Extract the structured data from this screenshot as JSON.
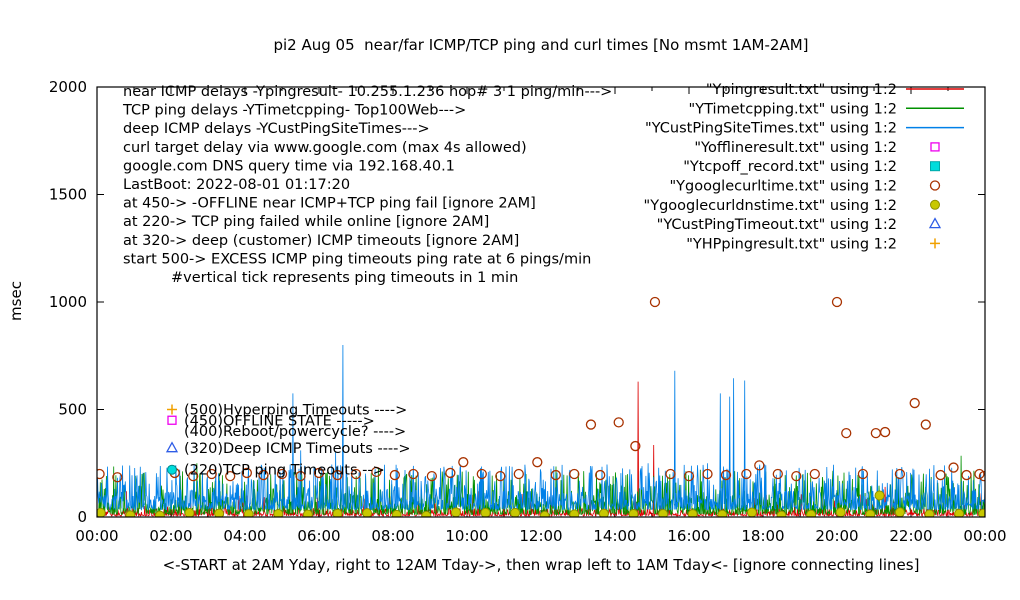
{
  "figure": {
    "title": "pi2 Aug 05  near/far ICMP/TCP ping and curl times [No msmt 1AM-2AM]",
    "xlabel": "<-START at 2AM Yday, right to 12AM Tday->, then wrap left to 1AM Tday<- [ignore connecting lines]",
    "ylabel": "msec"
  },
  "chart_data": {
    "type": "line",
    "title": "pi2 Aug 05  near/far ICMP/TCP ping and curl times [No msmt 1AM-2AM]",
    "xlabel": "<-START at 2AM Yday, right to 12AM Tday->, then wrap left to 1AM Tday<- [ignore connecting lines]",
    "ylabel": "msec",
    "ylim": [
      0,
      2000
    ],
    "x_hours": [
      0,
      24
    ],
    "grid": false,
    "legend_position": "top-right",
    "x_tick_hours": [
      0,
      2,
      4,
      6,
      8,
      10,
      12,
      14,
      16,
      18,
      20,
      22,
      24
    ],
    "x_tick_labels": [
      "00:00",
      "02:00",
      "04:00",
      "06:00",
      "08:00",
      "10:00",
      "12:00",
      "14:00",
      "16:00",
      "18:00",
      "20:00",
      "22:00",
      "00:00"
    ],
    "y_ticks": [
      0,
      500,
      1000,
      1500,
      2000
    ],
    "series": [
      {
        "name": "\"Ypingresult.txt\" using 1:2",
        "file": "Ypingresult.txt",
        "type": "line",
        "color": "#dd0000",
        "seed": 11,
        "noise": {
          "min": 5,
          "max": 42,
          "spike_prob": 0.05,
          "spike_max": 110
        },
        "spikes": [
          [
            0.8,
            120
          ],
          [
            4.05,
            100
          ],
          [
            10.3,
            120
          ],
          [
            14.62,
            630
          ],
          [
            15.05,
            335
          ],
          [
            18.3,
            90
          ],
          [
            21.3,
            140
          ],
          [
            23.9,
            110
          ]
        ]
      },
      {
        "name": "\"YTimetcpping.txt\" using 1:2",
        "file": "YTimetcpping.txt",
        "type": "line",
        "color": "#009100",
        "seed": 22,
        "noise": {
          "min": 12,
          "max": 95,
          "spike_prob": 0.18,
          "spike_max": 215
        },
        "spikes": [
          [
            0.45,
            235
          ],
          [
            2.7,
            250
          ],
          [
            3.3,
            205
          ],
          [
            4.6,
            195
          ],
          [
            5.2,
            210
          ],
          [
            6.1,
            195
          ],
          [
            7.6,
            230
          ],
          [
            8.5,
            195
          ],
          [
            9.4,
            205
          ],
          [
            10.8,
            195
          ],
          [
            11.6,
            200
          ],
          [
            12.4,
            235
          ],
          [
            13.5,
            205
          ],
          [
            14.3,
            195
          ],
          [
            16.3,
            220
          ],
          [
            18.6,
            195
          ],
          [
            19.2,
            205
          ],
          [
            20.6,
            195
          ],
          [
            21.6,
            195
          ],
          [
            22.5,
            190
          ],
          [
            23.35,
            285
          ],
          [
            23.7,
            215
          ]
        ]
      },
      {
        "name": "\"YCustPingSiteTimes.txt\" using 1:2",
        "file": "YCustPingSiteTimes.txt",
        "type": "line",
        "color": "#0080e8",
        "seed": 33,
        "noise": {
          "min": 35,
          "max": 125,
          "spike_prob": 0.22,
          "spike_max": 245
        },
        "spikes": [
          [
            5.3,
            575
          ],
          [
            5.5,
            310
          ],
          [
            6.45,
            300
          ],
          [
            6.65,
            800
          ],
          [
            10.4,
            235
          ],
          [
            14.9,
            250
          ],
          [
            15.62,
            680
          ],
          [
            16.5,
            250
          ],
          [
            16.85,
            575
          ],
          [
            17.1,
            560
          ],
          [
            17.2,
            645
          ],
          [
            17.5,
            635
          ],
          [
            18.05,
            245
          ],
          [
            20.5,
            230
          ],
          [
            22.9,
            240
          ]
        ]
      },
      {
        "name": "\"Yofflineresult.txt\" using 1:2",
        "file": "Yofflineresult.txt",
        "type": "points",
        "marker": "square-open",
        "color": "#ee00ee",
        "points": []
      },
      {
        "name": "\"Ytcpoff_record.txt\" using 1:2",
        "file": "Ytcpoff_record.txt",
        "type": "points",
        "marker": "square-filled",
        "color": "#00dcdc",
        "ring": "#00a8a8",
        "points": []
      },
      {
        "name": "\"Ygooglecurltime.txt\" using 1:2",
        "file": "Ygooglecurltime.txt",
        "type": "points",
        "marker": "circle-open",
        "color": "#a83200",
        "points": [
          [
            0.07,
            200
          ],
          [
            0.55,
            185
          ],
          [
            2.1,
            205
          ],
          [
            2.6,
            190
          ],
          [
            3.1,
            200
          ],
          [
            3.6,
            190
          ],
          [
            4.05,
            205
          ],
          [
            4.5,
            195
          ],
          [
            5.0,
            200
          ],
          [
            5.5,
            190
          ],
          [
            6.0,
            205
          ],
          [
            6.5,
            195
          ],
          [
            7.0,
            200
          ],
          [
            7.55,
            210
          ],
          [
            8.05,
            195
          ],
          [
            8.55,
            200
          ],
          [
            9.05,
            190
          ],
          [
            9.55,
            205
          ],
          [
            9.9,
            255
          ],
          [
            10.4,
            200
          ],
          [
            10.9,
            190
          ],
          [
            11.4,
            200
          ],
          [
            11.9,
            255
          ],
          [
            12.4,
            195
          ],
          [
            12.9,
            200
          ],
          [
            13.35,
            430
          ],
          [
            13.6,
            195
          ],
          [
            14.1,
            440
          ],
          [
            14.55,
            330
          ],
          [
            15.08,
            1000
          ],
          [
            15.5,
            200
          ],
          [
            16.0,
            190
          ],
          [
            16.5,
            200
          ],
          [
            17.0,
            195
          ],
          [
            17.55,
            200
          ],
          [
            17.9,
            240
          ],
          [
            18.4,
            200
          ],
          [
            18.9,
            190
          ],
          [
            19.4,
            200
          ],
          [
            20.0,
            1000
          ],
          [
            20.25,
            390
          ],
          [
            20.7,
            200
          ],
          [
            21.05,
            390
          ],
          [
            21.3,
            395
          ],
          [
            21.7,
            200
          ],
          [
            22.1,
            530
          ],
          [
            22.4,
            430
          ],
          [
            22.8,
            195
          ],
          [
            23.15,
            230
          ],
          [
            23.5,
            195
          ],
          [
            23.85,
            200
          ],
          [
            23.97,
            190
          ]
        ]
      },
      {
        "name": "\"Ygooglecurldnstime.txt\" using 1:2",
        "file": "Ygooglecurldnstime.txt",
        "type": "points",
        "marker": "circle-filled",
        "color": "#c8c800",
        "ring": "#8f8f00",
        "points_gen": {
          "x0": 0.1,
          "x1": 23.9,
          "step": 0.8,
          "ymin": 5,
          "ymax": 22,
          "seed": 44
        },
        "points": [
          [
            21.15,
            100
          ],
          [
            23.95,
            15
          ]
        ]
      },
      {
        "name": "\"YCustPingTimeout.txt\" using 1:2",
        "file": "YCustPingTimeout.txt",
        "type": "points",
        "marker": "triangle-open",
        "color": "#2e5ce6",
        "points": []
      },
      {
        "name": "\"YHPpingresult.txt\" using 1:2",
        "file": "YHPpingresult.txt",
        "type": "points",
        "marker": "plus",
        "color": "#f0a000",
        "points": []
      }
    ],
    "annotations": {
      "info_lines": [
        {
          "text": "near ICMP delays -Ypingresult- 10.255.1.236 hop# 3 1 ping/min--->"
        },
        {
          "text": "TCP ping delays -YTimetcpping- Top100Web--->"
        },
        {
          "text": "deep ICMP delays -YCustPingSiteTimes--->"
        },
        {
          "text": "curl target delay via www.google.com (max 4s allowed)"
        },
        {
          "text": "google.com DNS query time via 192.168.40.1"
        },
        {
          "text": "LastBoot: 2022-08-01 01:17:20"
        },
        {
          "text": "at 450-> -OFFLINE near ICMP+TCP ping fail [ignore 2AM]"
        },
        {
          "text": "at 220-> TCP ping failed while online [ignore 2AM]"
        },
        {
          "text": "at 320-> deep (customer) ICMP timeouts [ignore 2AM]"
        },
        {
          "text": "start 500-> EXCESS ICMP ping timeouts ping rate at 6 pings/min"
        },
        {
          "text": "#vertical tick represents ping timeouts in 1 min",
          "indent": 48
        }
      ],
      "level_labels": [
        {
          "msec": 500,
          "marker": "plus",
          "marker_color": "#f0a000",
          "text": "(500)Hyperping Timeouts ---->"
        },
        {
          "msec": 450,
          "marker": "square-open",
          "marker_color": "#ee00ee",
          "text": "(450)OFFLINE STATE ----->"
        },
        {
          "msec": 400,
          "marker": null,
          "marker_color": null,
          "text": "(400)Reboot/powercycle? ---->"
        },
        {
          "msec": 320,
          "marker": "triangle-open",
          "marker_color": "#2e5ce6",
          "text": "(320)Deep ICMP Timeouts ---->"
        },
        {
          "msec": 220,
          "marker": "circle-filled",
          "marker_color": "#00dcdc",
          "ring": "#008b8b",
          "text": "(220)TCP ping Timeouts -->"
        }
      ]
    }
  }
}
